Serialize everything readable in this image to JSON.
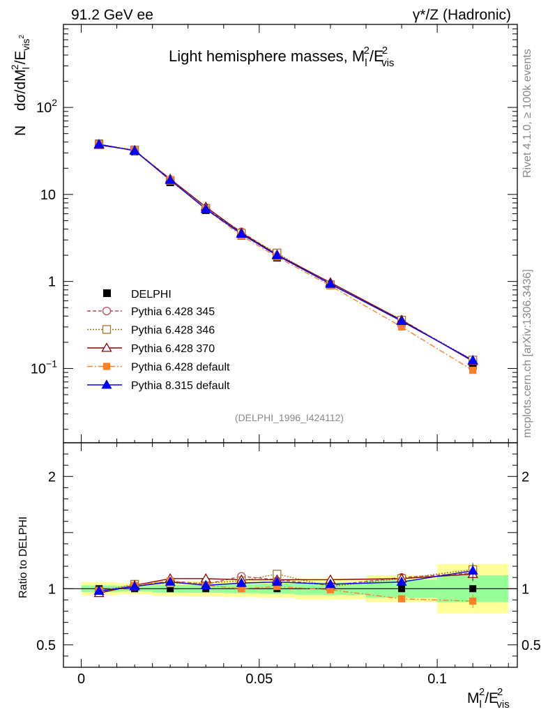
{
  "header": {
    "left": "91.2 GeV ee",
    "right_prefix": "γ*/Z",
    "right_suffix": "(Hadronic)"
  },
  "side_text": {
    "rivet": "Rivet 4.1.0, ≥ 100k events",
    "mcplots": "mcplots.cern.ch [arXiv:1306.3436]"
  },
  "chart_data": {
    "type": "line",
    "title_main": "Light hemisphere masses, ",
    "title_var": "M",
    "title_sub_l": "l",
    "title_sup_2": "2",
    "title_E": "/E",
    "title_sub_vis": "vis",
    "analysis_id": "(DELPHI_1996_I424112)",
    "ylabel_main_N": "N",
    "ylabel_main": "dσ/dM",
    "ylabel_ratio": "Ratio to DELPHI",
    "xlabel_M": "M",
    "xlabel_E": "/E",
    "xlabel_sub_l": "l",
    "xlabel_sup": "2",
    "xlabel_sub_vis": "vis",
    "xlim": [
      -0.005,
      0.1225
    ],
    "ylim_main": [
      0.014,
      900
    ],
    "ylim_ratio": [
      0.3,
      2.3
    ],
    "x_ticks": [
      0,
      0.05,
      0.1
    ],
    "x_tick_labels": [
      "0",
      "0.05",
      "0.1"
    ],
    "y_ticks_main": [
      {
        "value": 100,
        "label": "10",
        "exp": "2"
      },
      {
        "value": 10,
        "label": "10",
        "exp": ""
      },
      {
        "value": 1,
        "label": "1",
        "exp": ""
      },
      {
        "value": 0.1,
        "label": "10",
        "exp": "−1"
      }
    ],
    "y_ticks_ratio": [
      {
        "value": 2,
        "label": "2"
      },
      {
        "value": 1,
        "label": "1"
      },
      {
        "value": 0.5,
        "label": "0.5"
      }
    ],
    "bins": [
      [
        0,
        0.01
      ],
      [
        0.01,
        0.02
      ],
      [
        0.02,
        0.03
      ],
      [
        0.03,
        0.04
      ],
      [
        0.04,
        0.05
      ],
      [
        0.05,
        0.06
      ],
      [
        0.06,
        0.08
      ],
      [
        0.08,
        0.1
      ],
      [
        0.1,
        0.12
      ]
    ],
    "x": [
      0.005,
      0.015,
      0.025,
      0.035,
      0.045,
      0.055,
      0.07,
      0.09,
      0.11
    ],
    "data": {
      "name": "DELPHI",
      "values": [
        38.5,
        31.2,
        13.8,
        6.6,
        3.35,
        1.88,
        0.9,
        0.33,
        0.107
      ],
      "band_stat": [
        0.03,
        0.025,
        0.035,
        0.035,
        0.04,
        0.045,
        0.055,
        0.08,
        0.12
      ],
      "band_tot": [
        0.06,
        0.05,
        0.065,
        0.07,
        0.075,
        0.08,
        0.095,
        0.12,
        0.22
      ]
    },
    "series": [
      {
        "name": "Pythia 6.428 345",
        "color": "#b94a5a",
        "marker": "circle-open",
        "dash": "5,3",
        "ratio": [
          0.97,
          1.02,
          1.07,
          1.04,
          1.11,
          1.08,
          1.03,
          1.1,
          1.14
        ]
      },
      {
        "name": "Pythia 6.428 346",
        "color": "#a8742a",
        "marker": "square-open",
        "dash": "2,2",
        "ratio": [
          0.98,
          1.04,
          1.05,
          1.05,
          1.07,
          1.13,
          1.02,
          1.09,
          1.17
        ]
      },
      {
        "name": "Pythia 6.428 370",
        "color": "#8b0000",
        "marker": "triangle-open",
        "dash": "",
        "ratio": [
          0.96,
          1.03,
          1.09,
          1.09,
          1.08,
          1.08,
          1.08,
          1.09,
          1.13
        ]
      },
      {
        "name": "Pythia 6.428 default",
        "color": "#ff7f27",
        "marker": "square-filled",
        "dash": "8,3,2,3",
        "ratio": [
          0.98,
          1.03,
          1.07,
          1.03,
          1.0,
          1.02,
          0.99,
          0.91,
          0.89
        ]
      },
      {
        "name": "Pythia 8.315 default",
        "color": "#0000ff",
        "marker": "triangle-filled",
        "dash": "",
        "ratio": [
          0.98,
          1.02,
          1.06,
          1.03,
          1.05,
          1.06,
          1.04,
          1.06,
          1.16
        ]
      }
    ]
  }
}
